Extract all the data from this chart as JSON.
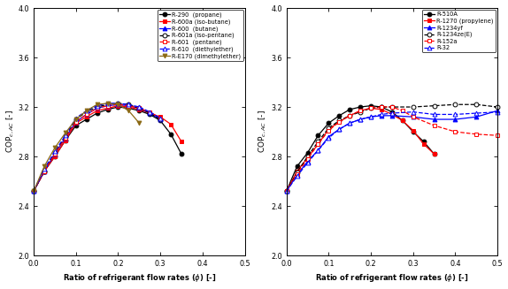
{
  "left_chart": {
    "series": [
      {
        "label": "R-290  (propane)",
        "color": "black",
        "linestyle": "-",
        "marker": "o",
        "fillstyle": "full",
        "x": [
          0.0,
          0.025,
          0.05,
          0.075,
          0.1,
          0.125,
          0.15,
          0.175,
          0.2,
          0.225,
          0.25,
          0.275,
          0.3,
          0.325,
          0.35
        ],
        "y": [
          2.52,
          2.68,
          2.8,
          2.93,
          3.05,
          3.1,
          3.15,
          3.18,
          3.2,
          3.19,
          3.17,
          3.14,
          3.09,
          2.98,
          2.82
        ]
      },
      {
        "label": "R-600a (iso-butane)",
        "color": "red",
        "linestyle": "-",
        "marker": "s",
        "fillstyle": "full",
        "x": [
          0.0,
          0.025,
          0.05,
          0.075,
          0.1,
          0.125,
          0.15,
          0.175,
          0.2,
          0.225,
          0.25,
          0.275,
          0.3,
          0.325,
          0.35
        ],
        "y": [
          2.52,
          2.68,
          2.8,
          2.93,
          3.07,
          3.12,
          3.17,
          3.19,
          3.21,
          3.2,
          3.18,
          3.15,
          3.12,
          3.06,
          2.92
        ]
      },
      {
        "label": "R-600  (butane)",
        "color": "blue",
        "linestyle": "-",
        "marker": "^",
        "fillstyle": "full",
        "x": [
          0.0,
          0.025,
          0.05,
          0.075,
          0.1,
          0.125,
          0.15,
          0.175,
          0.2,
          0.225,
          0.25,
          0.275,
          0.3
        ],
        "y": [
          2.52,
          2.68,
          2.82,
          2.95,
          3.08,
          3.14,
          3.19,
          3.21,
          3.22,
          3.21,
          3.19,
          3.15,
          3.1
        ]
      },
      {
        "label": "R-601a (iso-pentane)",
        "color": "black",
        "linestyle": "--",
        "marker": "o",
        "fillstyle": "none",
        "x": [
          0.0,
          0.025,
          0.05,
          0.075,
          0.1,
          0.125,
          0.15,
          0.175,
          0.2,
          0.225,
          0.25,
          0.275,
          0.3
        ],
        "y": [
          2.52,
          2.68,
          2.83,
          2.96,
          3.1,
          3.16,
          3.2,
          3.22,
          3.23,
          3.22,
          3.19,
          3.15,
          3.1
        ]
      },
      {
        "label": "R-601  (pentane)",
        "color": "red",
        "linestyle": "--",
        "marker": "s",
        "fillstyle": "none",
        "x": [
          0.0,
          0.025,
          0.05,
          0.075,
          0.1,
          0.125,
          0.15,
          0.175,
          0.2,
          0.225,
          0.25,
          0.275,
          0.3
        ],
        "y": [
          2.52,
          2.68,
          2.82,
          2.95,
          3.08,
          3.14,
          3.19,
          3.21,
          3.22,
          3.21,
          3.19,
          3.16,
          3.11
        ]
      },
      {
        "label": "R-610  (diethylether)",
        "color": "blue",
        "linestyle": "--",
        "marker": "^",
        "fillstyle": "none",
        "x": [
          0.0,
          0.025,
          0.05,
          0.075,
          0.1,
          0.125,
          0.15,
          0.175,
          0.2,
          0.225,
          0.25,
          0.275,
          0.3
        ],
        "y": [
          2.52,
          2.7,
          2.84,
          2.97,
          3.11,
          3.17,
          3.21,
          3.23,
          3.23,
          3.22,
          3.2,
          3.16,
          3.11
        ]
      },
      {
        "label": "R-E170 (dimethylether)",
        "color": "#8B6914",
        "linestyle": "-",
        "marker": "v",
        "fillstyle": "full",
        "x": [
          0.0,
          0.025,
          0.05,
          0.075,
          0.1,
          0.125,
          0.15,
          0.175,
          0.2,
          0.225,
          0.25
        ],
        "y": [
          2.52,
          2.72,
          2.87,
          2.99,
          3.1,
          3.17,
          3.22,
          3.23,
          3.22,
          3.17,
          3.07
        ]
      }
    ],
    "xlim": [
      0.0,
      0.5
    ],
    "ylim": [
      2.0,
      4.0
    ],
    "yticks": [
      2.0,
      2.4,
      2.8,
      3.2,
      3.6,
      4.0
    ],
    "xticks": [
      0.0,
      0.1,
      0.2,
      0.3,
      0.4,
      0.5
    ],
    "xlabel": "Ratio of refrigerant flow rates ($\\phi$) [-]",
    "ylabel": "COP$_{c,AC}$ [-]"
  },
  "right_chart": {
    "series": [
      {
        "label": "R-510A",
        "color": "black",
        "linestyle": "-",
        "marker": "o",
        "fillstyle": "full",
        "x": [
          0.0,
          0.025,
          0.05,
          0.075,
          0.1,
          0.125,
          0.15,
          0.175,
          0.2,
          0.225,
          0.25,
          0.275,
          0.3,
          0.325,
          0.35
        ],
        "y": [
          2.52,
          2.72,
          2.83,
          2.97,
          3.07,
          3.13,
          3.18,
          3.2,
          3.21,
          3.2,
          3.16,
          3.09,
          3.0,
          2.92,
          2.82
        ]
      },
      {
        "label": "R-1270 (propylene)",
        "color": "red",
        "linestyle": "-",
        "marker": "s",
        "fillstyle": "full",
        "x": [
          0.0,
          0.025,
          0.05,
          0.075,
          0.1,
          0.125,
          0.15,
          0.175,
          0.2,
          0.225,
          0.25,
          0.275,
          0.3,
          0.325,
          0.35
        ],
        "y": [
          2.52,
          2.68,
          2.79,
          2.9,
          3.02,
          3.08,
          3.13,
          3.17,
          3.19,
          3.18,
          3.14,
          3.09,
          3.01,
          2.9,
          2.82
        ]
      },
      {
        "label": "R-1234yf",
        "color": "blue",
        "linestyle": "-",
        "marker": "^",
        "fillstyle": "full",
        "x": [
          0.0,
          0.025,
          0.05,
          0.075,
          0.1,
          0.125,
          0.15,
          0.175,
          0.2,
          0.225,
          0.25,
          0.3,
          0.35,
          0.4,
          0.45,
          0.5
        ],
        "y": [
          2.52,
          2.65,
          2.76,
          2.85,
          2.96,
          3.02,
          3.07,
          3.1,
          3.12,
          3.13,
          3.13,
          3.12,
          3.1,
          3.1,
          3.12,
          3.17
        ]
      },
      {
        "label": "R-1234ze(E)",
        "color": "black",
        "linestyle": "--",
        "marker": "o",
        "fillstyle": "none",
        "x": [
          0.0,
          0.025,
          0.05,
          0.075,
          0.1,
          0.125,
          0.15,
          0.175,
          0.2,
          0.225,
          0.25,
          0.3,
          0.35,
          0.4,
          0.45,
          0.5
        ],
        "y": [
          2.52,
          2.67,
          2.8,
          2.92,
          3.03,
          3.09,
          3.13,
          3.16,
          3.19,
          3.2,
          3.2,
          3.2,
          3.21,
          3.22,
          3.22,
          3.2
        ]
      },
      {
        "label": "R-152a",
        "color": "red",
        "linestyle": "--",
        "marker": "s",
        "fillstyle": "none",
        "x": [
          0.0,
          0.025,
          0.05,
          0.075,
          0.1,
          0.125,
          0.15,
          0.175,
          0.2,
          0.225,
          0.25,
          0.275,
          0.3,
          0.35,
          0.4,
          0.45,
          0.5
        ],
        "y": [
          2.52,
          2.66,
          2.78,
          2.9,
          3.01,
          3.08,
          3.13,
          3.17,
          3.19,
          3.2,
          3.2,
          3.17,
          3.12,
          3.05,
          3.0,
          2.98,
          2.97
        ]
      },
      {
        "label": "R-32",
        "color": "blue",
        "linestyle": "--",
        "marker": "^",
        "fillstyle": "none",
        "x": [
          0.0,
          0.025,
          0.05,
          0.075,
          0.1,
          0.125,
          0.15,
          0.175,
          0.2,
          0.225,
          0.25,
          0.3,
          0.35,
          0.4,
          0.45,
          0.5
        ],
        "y": [
          2.52,
          2.64,
          2.75,
          2.85,
          2.95,
          3.02,
          3.07,
          3.1,
          3.12,
          3.14,
          3.15,
          3.16,
          3.14,
          3.14,
          3.15,
          3.16
        ]
      }
    ],
    "xlim": [
      0.0,
      0.5
    ],
    "ylim": [
      2.0,
      4.0
    ],
    "yticks": [
      2.0,
      2.4,
      2.8,
      3.2,
      3.6,
      4.0
    ],
    "xticks": [
      0.0,
      0.1,
      0.2,
      0.3,
      0.4,
      0.5
    ],
    "xlabel": "Ratio of refrigerant flow rates ($\\phi$) [-]",
    "ylabel": "COP$_{c,AC}$ [-]"
  }
}
